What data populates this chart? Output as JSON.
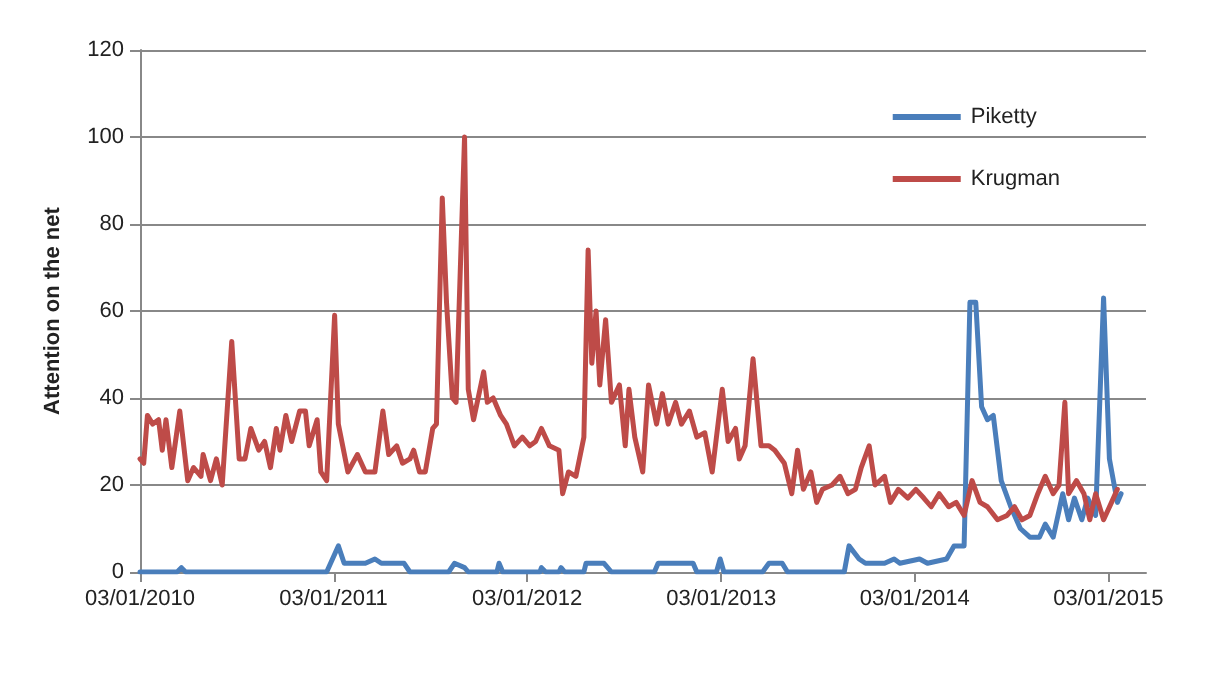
{
  "chart_data": {
    "type": "line",
    "ylabel": "Attention on the net",
    "xlim": [
      "2010-01-03",
      "2015-03-15"
    ],
    "xticks": [
      {
        "value": "2010-01-03",
        "label": "03/01/2010"
      },
      {
        "value": "2011-01-03",
        "label": "03/01/2011"
      },
      {
        "value": "2012-01-03",
        "label": "03/01/2012"
      },
      {
        "value": "2013-01-03",
        "label": "03/01/2013"
      },
      {
        "value": "2014-01-03",
        "label": "03/01/2014"
      },
      {
        "value": "2015-01-03",
        "label": "03/01/2015"
      }
    ],
    "ylim": [
      0,
      120
    ],
    "yticks": [
      0,
      20,
      40,
      60,
      80,
      100,
      120
    ],
    "grid": "y",
    "legend": "top right",
    "marker": "none",
    "line_style": "solid",
    "series": [
      {
        "name": "Piketty",
        "color": "#4a7ebb",
        "x": [
          "2010-01-03",
          "2010-03-14",
          "2010-03-22",
          "2010-03-30",
          "2010-12-21",
          "2011-01-12",
          "2011-01-23",
          "2011-03-04",
          "2011-03-22",
          "2011-04-03",
          "2011-05-16",
          "2011-05-27",
          "2011-08-08",
          "2011-08-19",
          "2011-09-07",
          "2011-09-14",
          "2011-11-07",
          "2011-11-11",
          "2011-11-18",
          "2012-01-27",
          "2012-01-30",
          "2012-02-07",
          "2012-03-03",
          "2012-03-07",
          "2012-03-14",
          "2012-04-19",
          "2012-04-23",
          "2012-05-12",
          "2012-05-27",
          "2012-06-10",
          "2012-08-30",
          "2012-09-06",
          "2012-11-07",
          "2012-11-11",
          "2012-11-18",
          "2012-12-25",
          "2013-01-01",
          "2013-01-08",
          "2013-03-22",
          "2013-04-03",
          "2013-04-28",
          "2013-05-08",
          "2013-08-23",
          "2013-09-01",
          "2013-09-20",
          "2013-10-02",
          "2013-11-07",
          "2013-11-25",
          "2013-12-06",
          "2014-01-12",
          "2014-01-27",
          "2014-03-04",
          "2014-03-18",
          "2014-04-06",
          "2014-04-17",
          "2014-04-28",
          "2014-05-09",
          "2014-05-20",
          "2014-05-31",
          "2014-06-15",
          "2014-07-03",
          "2014-07-21",
          "2014-08-08",
          "2014-08-26",
          "2014-09-06",
          "2014-09-21",
          "2014-10-09",
          "2014-10-20",
          "2014-10-31",
          "2014-11-14",
          "2014-11-25",
          "2014-12-10",
          "2014-12-25",
          "2015-01-05",
          "2015-01-20",
          "2015-01-27"
        ],
        "values": [
          0,
          0,
          1,
          0,
          0,
          6,
          2,
          2,
          3,
          2,
          2,
          0,
          0,
          2,
          1,
          0,
          0,
          2,
          0,
          0,
          1,
          0,
          0,
          1,
          0,
          0,
          2,
          2,
          2,
          0,
          0,
          2,
          2,
          2,
          0,
          0,
          3,
          0,
          0,
          2,
          2,
          0,
          0,
          6,
          3,
          2,
          2,
          3,
          2,
          3,
          2,
          3,
          6,
          6,
          62,
          62,
          38,
          35,
          36,
          21,
          15,
          10,
          8,
          8,
          11,
          8,
          18,
          12,
          17,
          12,
          17,
          13,
          63,
          26,
          16,
          18
        ]
      },
      {
        "name": "Krugman",
        "color": "#be4b48",
        "x": [
          "2010-01-03",
          "2010-01-10",
          "2010-01-17",
          "2010-01-27",
          "2010-02-07",
          "2010-02-14",
          "2010-02-21",
          "2010-03-04",
          "2010-03-19",
          "2010-04-03",
          "2010-04-14",
          "2010-04-28",
          "2010-05-02",
          "2010-05-16",
          "2010-05-27",
          "2010-06-07",
          "2010-06-25",
          "2010-07-09",
          "2010-07-20",
          "2010-07-31",
          "2010-08-15",
          "2010-08-26",
          "2010-09-06",
          "2010-09-17",
          "2010-09-24",
          "2010-10-05",
          "2010-10-16",
          "2010-10-31",
          "2010-11-11",
          "2010-11-18",
          "2010-12-03",
          "2010-12-10",
          "2010-12-21",
          "2011-01-05",
          "2011-01-12",
          "2011-01-30",
          "2011-02-17",
          "2011-03-04",
          "2011-03-22",
          "2011-04-06",
          "2011-04-17",
          "2011-05-02",
          "2011-05-13",
          "2011-05-27",
          "2011-06-03",
          "2011-06-14",
          "2011-06-25",
          "2011-07-09",
          "2011-07-16",
          "2011-07-27",
          "2011-08-04",
          "2011-08-15",
          "2011-08-22",
          "2011-09-07",
          "2011-09-14",
          "2011-09-24",
          "2011-10-13",
          "2011-10-20",
          "2011-10-31",
          "2011-11-14",
          "2011-11-25",
          "2011-12-10",
          "2011-12-25",
          "2012-01-08",
          "2012-01-19",
          "2012-01-30",
          "2012-02-14",
          "2012-03-03",
          "2012-03-10",
          "2012-03-21",
          "2012-04-04",
          "2012-04-19",
          "2012-04-27",
          "2012-05-04",
          "2012-05-12",
          "2012-05-19",
          "2012-05-30",
          "2012-06-10",
          "2012-06-25",
          "2012-07-06",
          "2012-07-13",
          "2012-07-24",
          "2012-08-08",
          "2012-08-19",
          "2012-09-03",
          "2012-09-14",
          "2012-09-25",
          "2012-10-09",
          "2012-10-20",
          "2012-11-04",
          "2012-11-18",
          "2012-12-03",
          "2012-12-17",
          "2013-01-05",
          "2013-01-16",
          "2013-01-30",
          "2013-02-06",
          "2013-02-17",
          "2013-03-04",
          "2013-03-19",
          "2013-04-03",
          "2013-04-14",
          "2013-05-02",
          "2013-05-16",
          "2013-05-27",
          "2013-06-07",
          "2013-06-21",
          "2013-07-02",
          "2013-07-13",
          "2013-07-31",
          "2013-08-15",
          "2013-08-30",
          "2013-09-13",
          "2013-09-24",
          "2013-10-09",
          "2013-10-20",
          "2013-11-07",
          "2013-11-18",
          "2013-12-03",
          "2013-12-21",
          "2014-01-05",
          "2014-01-20",
          "2014-02-03",
          "2014-02-18",
          "2014-03-08",
          "2014-03-22",
          "2014-04-06",
          "2014-04-21",
          "2014-05-06",
          "2014-05-20",
          "2014-06-08",
          "2014-06-26",
          "2014-07-10",
          "2014-07-24",
          "2014-08-08",
          "2014-08-23",
          "2014-09-06",
          "2014-09-21",
          "2014-10-02",
          "2014-10-13",
          "2014-10-20",
          "2014-11-04",
          "2014-11-18",
          "2014-11-29",
          "2014-12-10",
          "2014-12-25",
          "2015-01-09",
          "2015-01-20"
        ],
        "values": [
          26,
          25,
          36,
          34,
          35,
          28,
          35,
          24,
          37,
          21,
          24,
          22,
          27,
          21,
          26,
          20,
          53,
          26,
          26,
          33,
          28,
          30,
          24,
          33,
          28,
          36,
          30,
          37,
          37,
          29,
          35,
          23,
          21,
          59,
          34,
          23,
          27,
          23,
          23,
          37,
          27,
          29,
          25,
          26,
          28,
          23,
          23,
          33,
          34,
          86,
          62,
          40,
          39,
          100,
          42,
          35,
          46,
          39,
          40,
          36,
          34,
          29,
          31,
          29,
          30,
          33,
          29,
          28,
          18,
          23,
          22,
          31,
          74,
          48,
          60,
          43,
          58,
          39,
          43,
          29,
          42,
          31,
          23,
          43,
          34,
          41,
          34,
          39,
          34,
          37,
          31,
          32,
          23,
          42,
          30,
          33,
          26,
          29,
          49,
          29,
          29,
          28,
          25,
          18,
          28,
          19,
          23,
          16,
          19,
          20,
          22,
          18,
          19,
          24,
          29,
          20,
          22,
          16,
          19,
          17,
          19,
          17,
          15,
          18,
          15,
          16,
          13,
          21,
          16,
          15,
          12,
          13,
          15,
          12,
          13,
          18,
          22,
          18,
          20,
          39,
          18,
          21,
          18,
          12,
          18,
          12,
          16,
          19
        ]
      }
    ]
  }
}
